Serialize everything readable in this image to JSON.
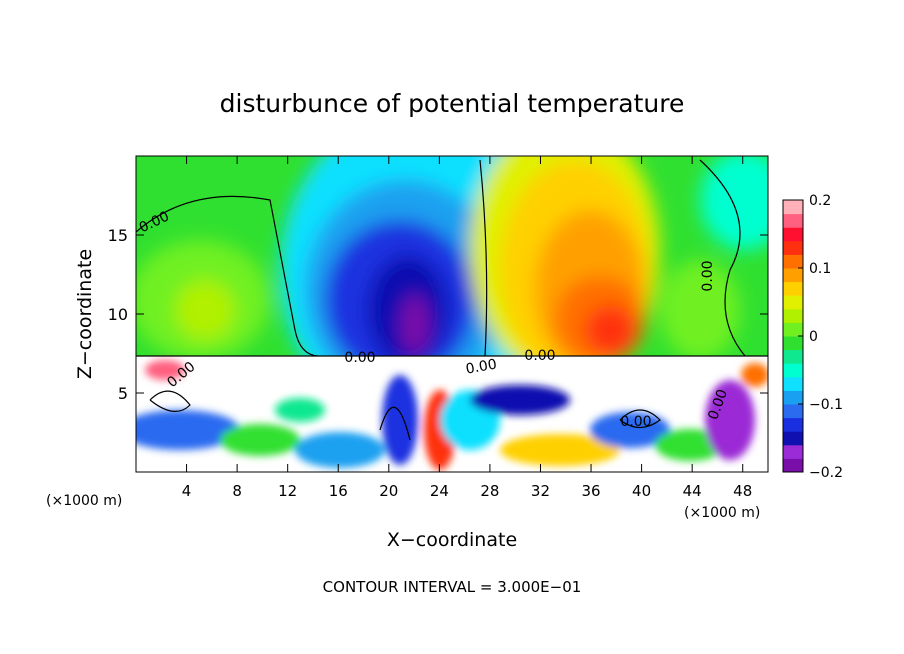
{
  "chart_data": {
    "type": "heatmap",
    "title": "disturbunce of potential temperature",
    "xlabel": "X−coordinate",
    "ylabel": "Z−coordinate",
    "x_unit": "(×1000 m)",
    "x_unit_right": "(×1000 m)",
    "footer": "CONTOUR INTERVAL = 3.000E−01",
    "xlim": [
      0,
      50
    ],
    "ylim": [
      0,
      20
    ],
    "x_ticks": [
      4,
      8,
      12,
      16,
      20,
      24,
      28,
      32,
      36,
      40,
      44,
      48
    ],
    "x_tick_labels": [
      "4",
      "8",
      "12",
      "16",
      "20",
      "24",
      "28",
      "32",
      "36",
      "40",
      "44",
      "48"
    ],
    "y_ticks": [
      5,
      10,
      15
    ],
    "y_tick_labels": [
      "5",
      "10",
      "15"
    ],
    "colorbar": {
      "range": [
        -0.2,
        0.2
      ],
      "ticks": [
        0.2,
        0.1,
        0,
        -0.1,
        -0.2
      ],
      "tick_labels": [
        "0.2",
        "0.1",
        "0",
        "−0.1",
        "−0.2"
      ],
      "colors": [
        "#7a0ea8",
        "#9b2bd6",
        "#1010b0",
        "#1a30e0",
        "#2a6bf0",
        "#1aa0f0",
        "#10e0ff",
        "#00ffd0",
        "#10e890",
        "#30e030",
        "#70f020",
        "#b0f000",
        "#e0f000",
        "#ffd000",
        "#ffa000",
        "#ff7000",
        "#ff3010",
        "#ff1030",
        "#ff6080",
        "#ffb0b8"
      ]
    },
    "contour_labels": [
      "0.00",
      "0.00",
      "0.00",
      "0.00",
      "0.00",
      "0.00",
      "0.00",
      "0.00"
    ]
  }
}
